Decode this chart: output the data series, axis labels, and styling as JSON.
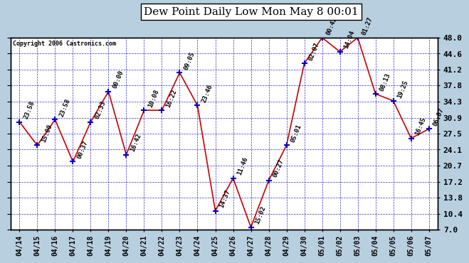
{
  "title": "Dew Point Daily Low Mon May 8 00:01",
  "copyright": "Copyright 2006 Castronics.com",
  "dates": [
    "04/14",
    "04/15",
    "04/16",
    "04/17",
    "04/18",
    "04/19",
    "04/20",
    "04/21",
    "04/22",
    "04/23",
    "04/24",
    "04/25",
    "04/26",
    "04/27",
    "04/28",
    "04/29",
    "04/30",
    "05/01",
    "05/02",
    "05/03",
    "05/04",
    "05/05",
    "05/06",
    "05/07"
  ],
  "values": [
    30.0,
    25.0,
    30.5,
    21.5,
    30.0,
    36.5,
    23.0,
    32.5,
    32.5,
    40.5,
    33.5,
    11.0,
    18.0,
    7.5,
    17.5,
    25.0,
    42.5,
    48.0,
    45.0,
    48.0,
    36.0,
    34.5,
    26.5,
    28.5
  ],
  "labels": [
    "23:58",
    "15:00",
    "23:58",
    "00:37",
    "02:33",
    "00:00",
    "16:42",
    "10:08",
    "16:22",
    "09:05",
    "23:46",
    "14:37",
    "11:46",
    "15:02",
    "00:27",
    "05:01",
    "02:07",
    "00:42",
    "14:04",
    "01:27",
    "08:13",
    "19:25",
    "16:45",
    "06:07"
  ],
  "ylim": [
    7.0,
    48.0
  ],
  "yticks": [
    7.0,
    10.4,
    13.8,
    17.2,
    20.7,
    24.1,
    27.5,
    30.9,
    34.3,
    37.8,
    41.2,
    44.6,
    48.0
  ],
  "line_color": "#cc0000",
  "marker_color": "#0000cc",
  "outer_bg": "#b8cfe0",
  "plot_bg": "#ffffff",
  "grid_color": "#0000bb",
  "title_fontsize": 11,
  "label_fontsize": 6.5,
  "copyright_fontsize": 6
}
